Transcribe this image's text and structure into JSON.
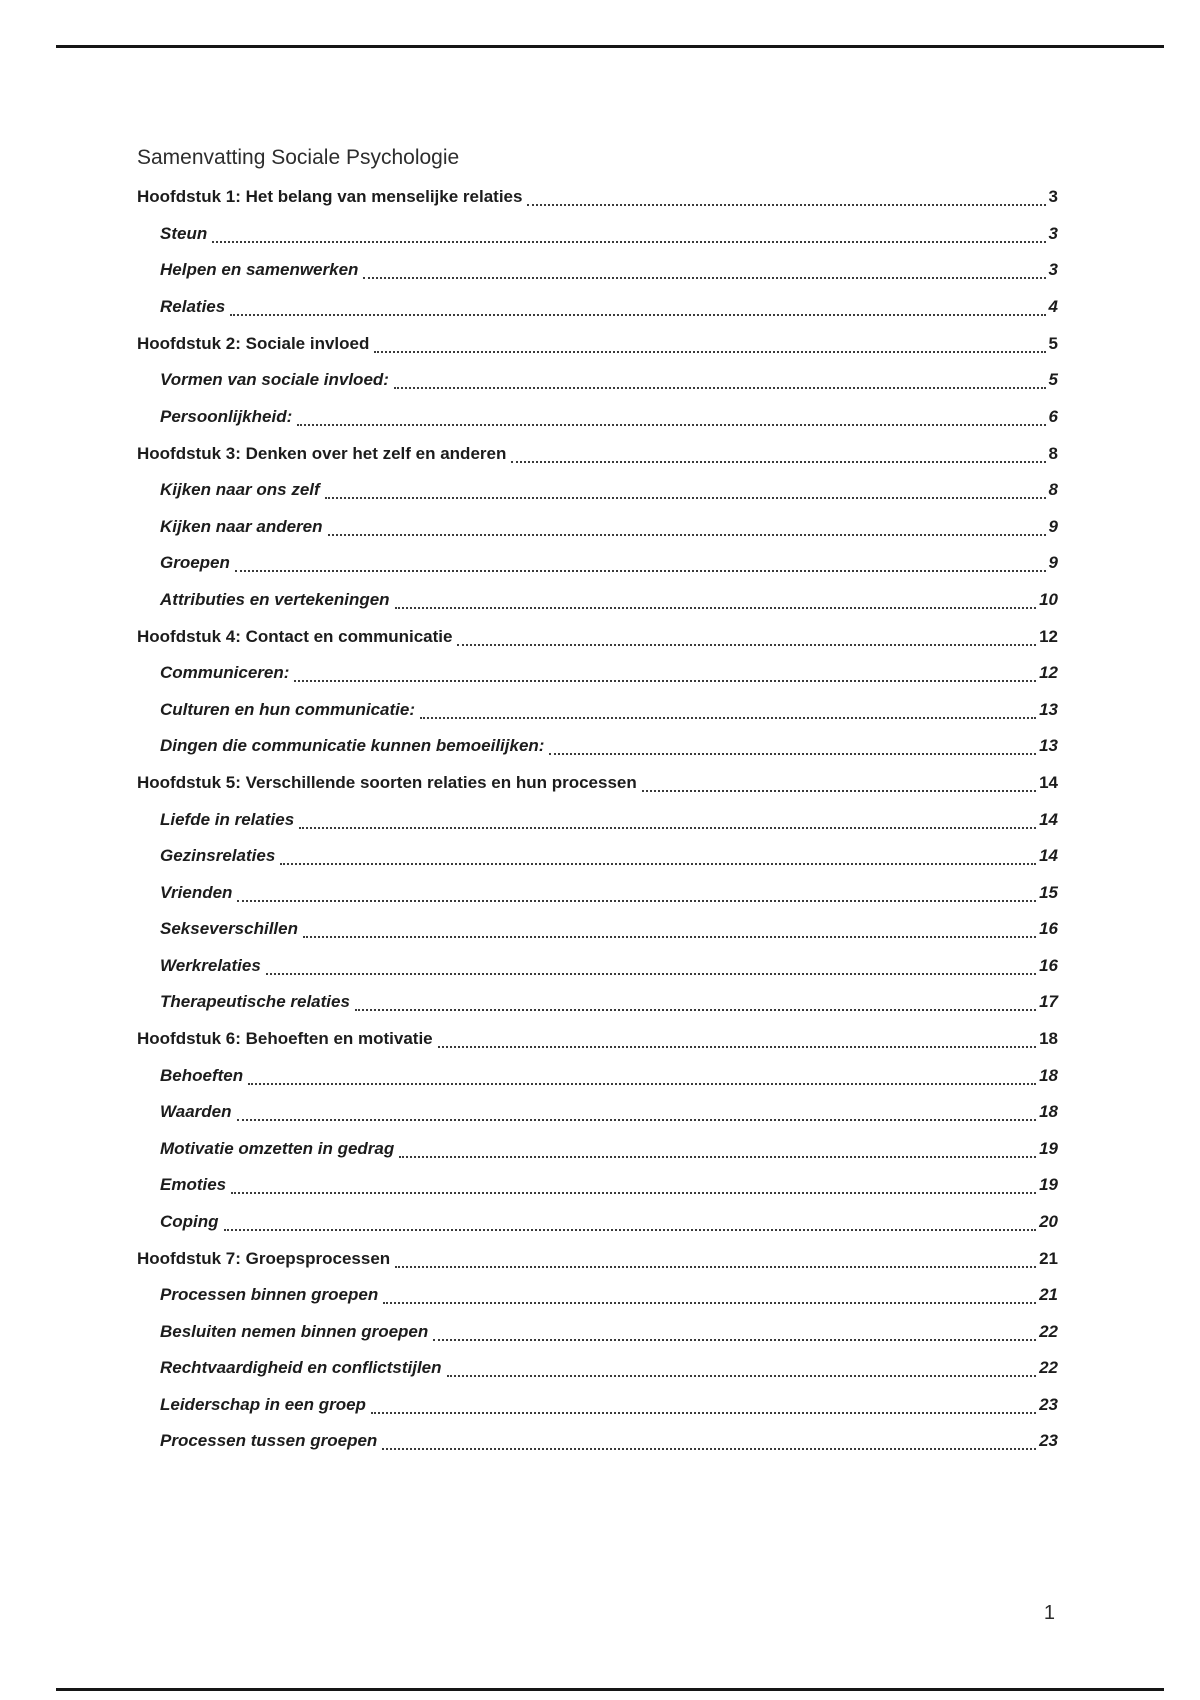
{
  "page": {
    "title": "Samenvatting Sociale Psychologie",
    "footer_page_number": "1"
  },
  "colors": {
    "text": "#1c1c1c",
    "title": "#2d2d2d",
    "rule": "#161616",
    "leader_dots": "#3a3a3a",
    "paper": "#ffffff"
  },
  "toc": {
    "chapters": [
      {
        "label": "Hoofdstuk 1: Het belang van menselijke relaties",
        "page": "3",
        "sections": [
          {
            "label": "Steun",
            "page": "3"
          },
          {
            "label": "Helpen en samenwerken",
            "page": "3"
          },
          {
            "label": "Relaties",
            "page": "4"
          }
        ]
      },
      {
        "label": "Hoofdstuk 2: Sociale invloed",
        "page": "5",
        "sections": [
          {
            "label": "Vormen van sociale invloed:",
            "page": "5"
          },
          {
            "label": "Persoonlijkheid:",
            "page": "6"
          }
        ]
      },
      {
        "label": "Hoofdstuk 3: Denken over het zelf en anderen",
        "page": "8",
        "sections": [
          {
            "label": "Kijken naar ons zelf",
            "page": "8"
          },
          {
            "label": "Kijken naar anderen",
            "page": "9"
          },
          {
            "label": "Groepen",
            "page": "9"
          },
          {
            "label": "Attributies en vertekeningen",
            "page": "10"
          }
        ]
      },
      {
        "label": "Hoofdstuk 4: Contact en communicatie",
        "page": "12",
        "sections": [
          {
            "label": "Communiceren:",
            "page": "12"
          },
          {
            "label": "Culturen en hun communicatie:",
            "page": "13"
          },
          {
            "label": "Dingen die communicatie kunnen bemoeilijken:",
            "page": "13"
          }
        ]
      },
      {
        "label": "Hoofdstuk 5: Verschillende soorten relaties en hun processen",
        "page": "14",
        "sections": [
          {
            "label": "Liefde in relaties",
            "page": "14"
          },
          {
            "label": "Gezinsrelaties",
            "page": "14"
          },
          {
            "label": "Vrienden",
            "page": "15"
          },
          {
            "label": "Sekseverschillen",
            "page": "16"
          },
          {
            "label": "Werkrelaties",
            "page": "16"
          },
          {
            "label": "Therapeutische relaties",
            "page": "17"
          }
        ]
      },
      {
        "label": "Hoofdstuk 6: Behoeften en motivatie",
        "page": "18",
        "sections": [
          {
            "label": "Behoeften",
            "page": "18"
          },
          {
            "label": "Waarden",
            "page": "18"
          },
          {
            "label": "Motivatie omzetten in gedrag",
            "page": "19"
          },
          {
            "label": "Emoties",
            "page": "19"
          },
          {
            "label": "Coping",
            "page": "20"
          }
        ]
      },
      {
        "label": "Hoofdstuk 7: Groepsprocessen",
        "page": "21",
        "sections": [
          {
            "label": "Processen binnen groepen",
            "page": "21"
          },
          {
            "label": "Besluiten nemen binnen groepen",
            "page": "22"
          },
          {
            "label": "Rechtvaardigheid en conflictstijlen",
            "page": "22"
          },
          {
            "label": "Leiderschap in een groep",
            "page": "23"
          },
          {
            "label": "Processen tussen groepen",
            "page": "23"
          }
        ]
      }
    ]
  }
}
